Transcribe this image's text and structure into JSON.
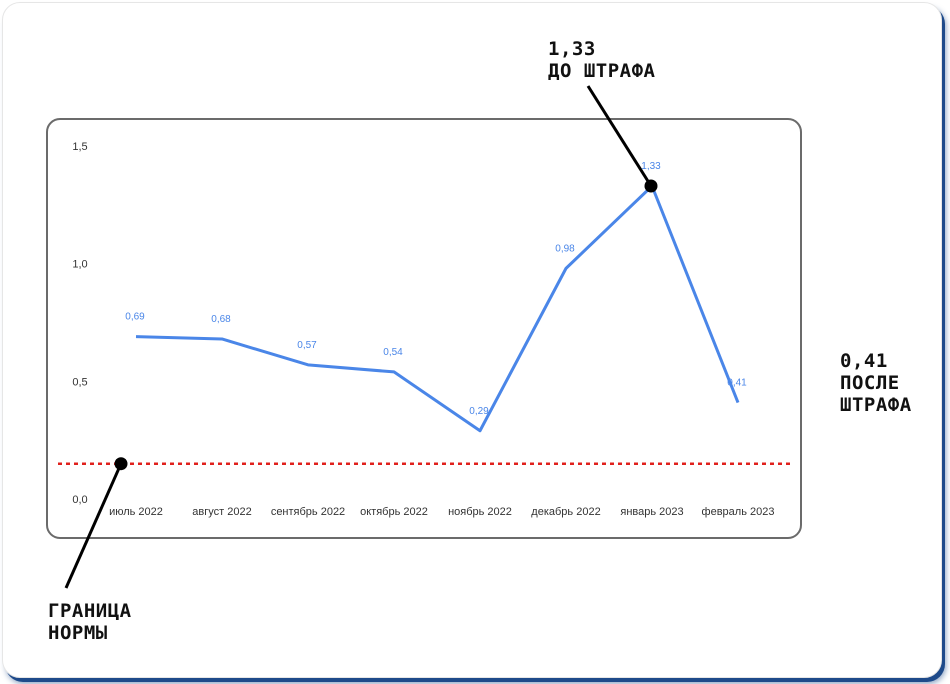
{
  "chart_data": {
    "type": "line",
    "categories": [
      "июль 2022",
      "август 2022",
      "сентябрь 2022",
      "октябрь 2022",
      "ноябрь 2022",
      "декабрь 2022",
      "январь 2023",
      "февраль 2023"
    ],
    "series": [
      {
        "values": [
          0.69,
          0.68,
          0.57,
          0.54,
          0.29,
          0.98,
          1.33,
          0.41
        ],
        "color": "#4a86e8"
      }
    ],
    "data_labels": [
      "0,69",
      "0,68",
      "0,57",
      "0,54",
      "0,29",
      "0,98",
      "1,33",
      "0,41"
    ],
    "y_ticks": [
      0.0,
      0.5,
      1.0,
      1.5
    ],
    "y_tick_labels": [
      "0,0",
      "0,5",
      "1,0",
      "1,5"
    ],
    "ylim": [
      0,
      1.5
    ],
    "grid": false,
    "threshold": {
      "value": 0.15,
      "color": "#e0201c",
      "style": "dotted"
    }
  },
  "annotations": {
    "peak_line1": "1,33",
    "peak_line2": "ДО ШТРАФА",
    "after_line1": "0,41",
    "after_line2": "ПОСЛЕ",
    "after_line3": "ШТРАФА",
    "norm_line1": "ГРАНИЦА",
    "norm_line2": "НОРМЫ"
  }
}
